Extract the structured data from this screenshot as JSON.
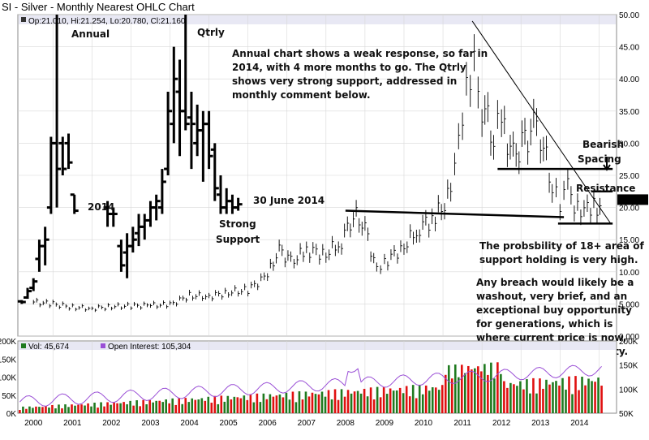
{
  "chart_data": {
    "type": "ohlc",
    "title": "SI - Silver - Monthly Nearest OHLC Chart",
    "ohlc_legend": {
      "open": "Op:21.010",
      "high": "Hi:21.254",
      "low": "Lo:20.780",
      "close": "Cl:21.160"
    },
    "last_price_label": "21.160",
    "x_ticks": [
      "2000",
      "2001",
      "2002",
      "2003",
      "2004",
      "2005",
      "2006",
      "2007",
      "2008",
      "2009",
      "2010",
      "2011",
      "2012",
      "2013",
      "2014"
    ],
    "y_ticks": [
      "0.000",
      "5.000",
      "10.00",
      "15.00",
      "20.00",
      "25.00",
      "30.00",
      "35.00",
      "40.00",
      "45.00",
      "50.00"
    ],
    "ylim": [
      0,
      50
    ],
    "xlim": [
      1999.6,
      2014.95
    ],
    "monthly_close": [
      [
        2000.0,
        5.3
      ],
      [
        2000.5,
        5.0
      ],
      [
        2001.0,
        4.5
      ],
      [
        2001.5,
        4.3
      ],
      [
        2002.0,
        4.6
      ],
      [
        2002.5,
        4.7
      ],
      [
        2003.0,
        4.8
      ],
      [
        2003.5,
        4.9
      ],
      [
        2004.0,
        6.3
      ],
      [
        2004.5,
        6.2
      ],
      [
        2005.0,
        6.8
      ],
      [
        2005.5,
        7.2
      ],
      [
        2006.0,
        9.5
      ],
      [
        2006.3,
        13.5
      ],
      [
        2006.6,
        11.5
      ],
      [
        2007.0,
        13.4
      ],
      [
        2007.5,
        12.8
      ],
      [
        2007.9,
        14.8
      ],
      [
        2008.2,
        19.0
      ],
      [
        2008.5,
        17.0
      ],
      [
        2008.8,
        10.0
      ],
      [
        2009.0,
        11.5
      ],
      [
        2009.5,
        14.0
      ],
      [
        2009.9,
        17.0
      ],
      [
        2010.3,
        18.5
      ],
      [
        2010.7,
        22.0
      ],
      [
        2010.9,
        29.0
      ],
      [
        2011.1,
        38.0
      ],
      [
        2011.3,
        45.0
      ],
      [
        2011.5,
        36.0
      ],
      [
        2011.8,
        31.5
      ],
      [
        2012.0,
        33.0
      ],
      [
        2012.3,
        28.0
      ],
      [
        2012.6,
        30.0
      ],
      [
        2012.9,
        33.5
      ],
      [
        2013.0,
        31.0
      ],
      [
        2013.3,
        24.0
      ],
      [
        2013.5,
        19.5
      ],
      [
        2013.7,
        23.0
      ],
      [
        2013.95,
        19.5
      ],
      [
        2014.2,
        20.5
      ],
      [
        2014.45,
        20.0
      ],
      [
        2014.6,
        21.16
      ]
    ],
    "annual_bars": [
      {
        "x": 1999.7,
        "open": 5.4,
        "high": 5.6,
        "low": 5.0,
        "close": 5.3
      },
      {
        "x": 1999.85,
        "open": 6.0,
        "high": 7.5,
        "low": 5.8,
        "close": 7.0
      },
      {
        "x": 2000.0,
        "open": 7.5,
        "high": 9.0,
        "low": 7.0,
        "close": 8.5
      },
      {
        "x": 2000.15,
        "open": 12.0,
        "high": 15.0,
        "low": 10.0,
        "close": 14.0
      },
      {
        "x": 2000.3,
        "open": 14.0,
        "high": 17.0,
        "low": 11.0,
        "close": 15.0
      },
      {
        "x": 2000.45,
        "open": 20.0,
        "high": 31.0,
        "low": 19.0,
        "close": 30.0
      },
      {
        "x": 2000.6,
        "open": 30.0,
        "high": 50.0,
        "low": 20.0,
        "close": 26.0
      },
      {
        "x": 2000.75,
        "open": 30.0,
        "high": 31.0,
        "low": 25.0,
        "close": 26.0
      },
      {
        "x": 2000.9,
        "open": 30.0,
        "high": 31.5,
        "low": 26.0,
        "close": 27.0
      },
      {
        "x": 2001.05,
        "open": 22.0,
        "high": 22.0,
        "low": 19.0,
        "close": 19.5
      }
    ],
    "qtrly_bars": [
      {
        "x": 2001.9,
        "open": 20.0,
        "high": 21.0,
        "low": 17.0,
        "close": 19.0
      },
      {
        "x": 2002.05,
        "open": 19.0,
        "high": 20.0,
        "low": 17.0,
        "close": 19.0
      },
      {
        "x": 2002.25,
        "open": 14.0,
        "high": 15.0,
        "low": 10.0,
        "close": 11.0
      },
      {
        "x": 2002.4,
        "open": 13.0,
        "high": 16.0,
        "low": 9.0,
        "close": 14.0
      },
      {
        "x": 2002.55,
        "open": 14.0,
        "high": 17.0,
        "low": 13.0,
        "close": 15.0
      },
      {
        "x": 2002.7,
        "open": 16.0,
        "high": 19.0,
        "low": 14.0,
        "close": 17.0
      },
      {
        "x": 2002.85,
        "open": 17.0,
        "high": 19.0,
        "low": 15.0,
        "close": 18.0
      },
      {
        "x": 2003.0,
        "open": 18.0,
        "high": 21.0,
        "low": 17.0,
        "close": 20.0
      },
      {
        "x": 2003.15,
        "open": 20.0,
        "high": 22.0,
        "low": 18.0,
        "close": 21.0
      },
      {
        "x": 2003.3,
        "open": 20.0,
        "high": 26.0,
        "low": 19.0,
        "close": 24.0
      },
      {
        "x": 2003.45,
        "open": 26.0,
        "high": 38.0,
        "low": 25.0,
        "close": 35.0
      },
      {
        "x": 2003.6,
        "open": 33.0,
        "high": 45.0,
        "low": 30.0,
        "close": 40.0
      },
      {
        "x": 2003.75,
        "open": 38.0,
        "high": 43.0,
        "low": 28.0,
        "close": 35.0
      },
      {
        "x": 2003.9,
        "open": 35.0,
        "high": 50.0,
        "low": 32.0,
        "close": 33.0
      },
      {
        "x": 2004.05,
        "open": 34.0,
        "high": 38.0,
        "low": 26.0,
        "close": 33.0
      },
      {
        "x": 2004.2,
        "open": 30.0,
        "high": 36.0,
        "low": 28.0,
        "close": 32.0
      },
      {
        "x": 2004.35,
        "open": 32.0,
        "high": 35.0,
        "low": 24.0,
        "close": 33.0
      },
      {
        "x": 2004.5,
        "open": 33.0,
        "high": 35.0,
        "low": 26.0,
        "close": 28.0
      },
      {
        "x": 2004.65,
        "open": 29.0,
        "high": 30.0,
        "low": 21.0,
        "close": 23.0
      },
      {
        "x": 2004.8,
        "open": 22.0,
        "high": 25.0,
        "low": 19.0,
        "close": 20.0
      },
      {
        "x": 2004.95,
        "open": 20.0,
        "high": 23.0,
        "low": 19.0,
        "close": 21.0
      },
      {
        "x": 2005.1,
        "open": 21.0,
        "high": 22.0,
        "low": 19.0,
        "close": 20.0
      },
      {
        "x": 2005.25,
        "open": 20.0,
        "high": 21.5,
        "low": 19.5,
        "close": 20.5
      }
    ],
    "trend_lines": [
      {
        "name": "downtrend",
        "from": [
          2011.25,
          49.0
        ],
        "to": [
          2014.8,
          17.5
        ]
      },
      {
        "name": "resistance-25",
        "from": [
          2011.9,
          26.0
        ],
        "to": [
          2014.85,
          26.0
        ]
      },
      {
        "name": "support-2008",
        "from": [
          2008.0,
          19.5
        ],
        "to": [
          2013.6,
          18.5
        ]
      },
      {
        "name": "support-18",
        "from": [
          2013.45,
          17.5
        ],
        "to": [
          2014.85,
          17.5
        ]
      },
      {
        "name": "resistance-22",
        "from": [
          2014.3,
          22.5
        ],
        "to": [
          2014.85,
          22.5
        ]
      }
    ],
    "annotations": {
      "annual": "Annual",
      "qtrly": "Qtrly",
      "label_2014": "2014",
      "june": "30 June 2014",
      "strong": "Strong",
      "support": "Support",
      "comment": [
        "Annual chart shows a weak response, so far in",
        "2014, with 4 more months to go.  The Qtrly",
        "shows very strong support, addressed in",
        "monthly comment below."
      ],
      "bearish": "Bearish",
      "spacing": "Spacing",
      "resistance": "Resistance",
      "prob": [
        "The probsbility of 18+ area of",
        "support holding is very high."
      ],
      "breach": [
        "Any breach would likely be a",
        "washout, very brief, and an",
        "exceptional buy opportunity",
        "for generations, which is",
        "where current price is now,",
        "an exceptional opportunity."
      ]
    },
    "volume_panel": {
      "legend_vol": "Vol: 45,674",
      "legend_oi": "Open Interest: 105,304",
      "left_ticks": [
        "200K",
        "150K",
        "100K",
        "50K",
        "0K"
      ],
      "right_ticks": [
        "200K",
        "150K",
        "100K",
        "50K"
      ],
      "ylim": [
        0,
        200000
      ],
      "oi_ylim": [
        50000,
        200000
      ]
    },
    "colors": {
      "up": "#1f7a1f",
      "down": "#e01010",
      "oi": "#9a4fd6",
      "price": "#000000",
      "grid": "#d8d8d8",
      "band": "#e8e8f4"
    }
  }
}
